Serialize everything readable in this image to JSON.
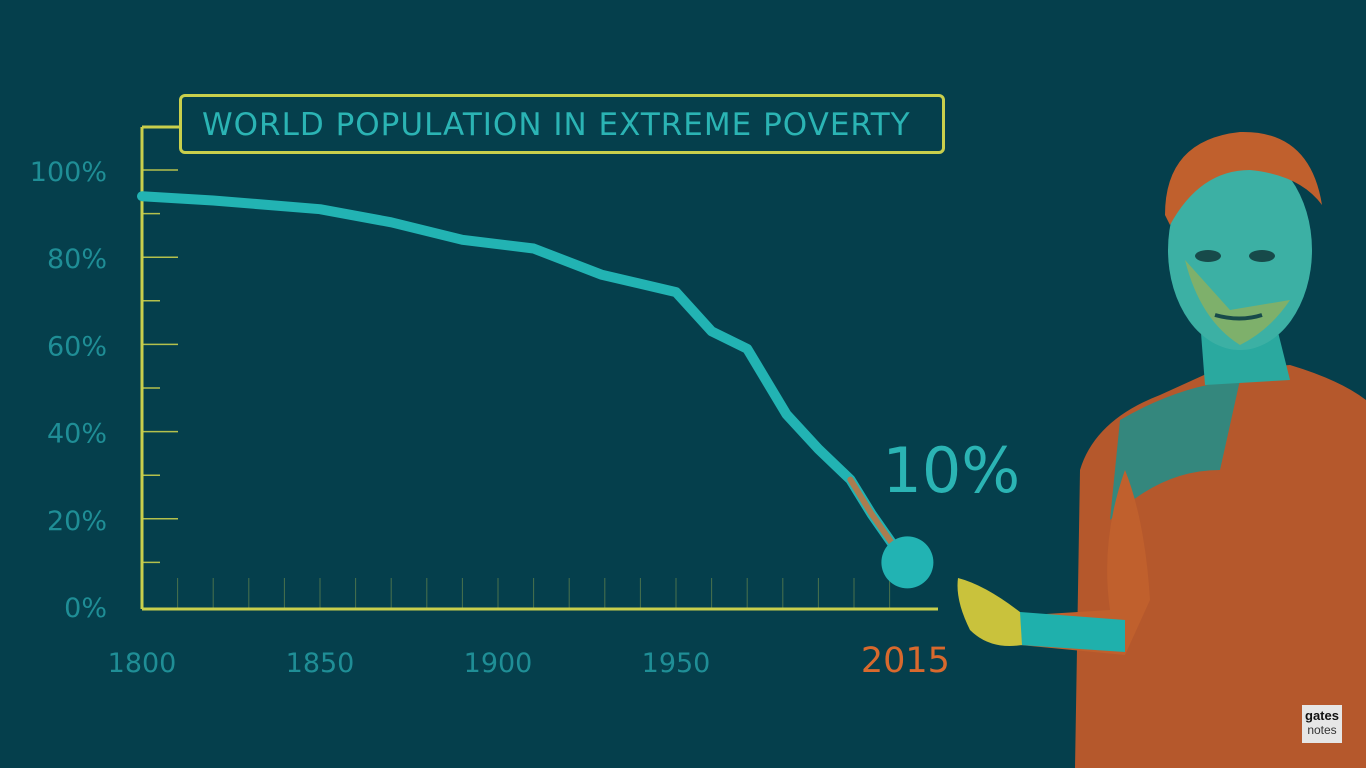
{
  "chart_data": {
    "type": "line",
    "title": "WORLD POPULATION IN EXTREME POVERTY",
    "x": [
      1800,
      1820,
      1850,
      1870,
      1890,
      1910,
      1929,
      1950,
      1960,
      1970,
      1981,
      1990,
      1999,
      2005,
      2011,
      2015
    ],
    "series": [
      {
        "values": [
          94,
          93,
          91,
          88,
          84,
          82,
          76,
          72,
          63,
          59,
          44,
          36,
          29,
          21,
          14,
          10
        ],
        "color": "#22b3b3"
      }
    ],
    "x_ticks": [
      "1800",
      "1850",
      "1900",
      "1950"
    ],
    "x_tick_values": [
      1800,
      1850,
      1900,
      1950
    ],
    "highlight_x_label": "2015",
    "y_ticks": [
      "0%",
      "20%",
      "40%",
      "60%",
      "80%",
      "100%"
    ],
    "y_tick_values": [
      0,
      20,
      40,
      60,
      80,
      100
    ],
    "xlim": [
      1800,
      2025
    ],
    "ylim": [
      0,
      100
    ],
    "annotation": {
      "text": "10%",
      "x": 2015,
      "y": 10
    },
    "colors": {
      "axis": "#c9cf4c",
      "tick_label": "#1f8e96",
      "line": "#22b3b3",
      "highlight": "#d9692d",
      "annotation": "#2bb4b4"
    }
  },
  "logo": {
    "line1": "gates",
    "line2": "notes"
  }
}
